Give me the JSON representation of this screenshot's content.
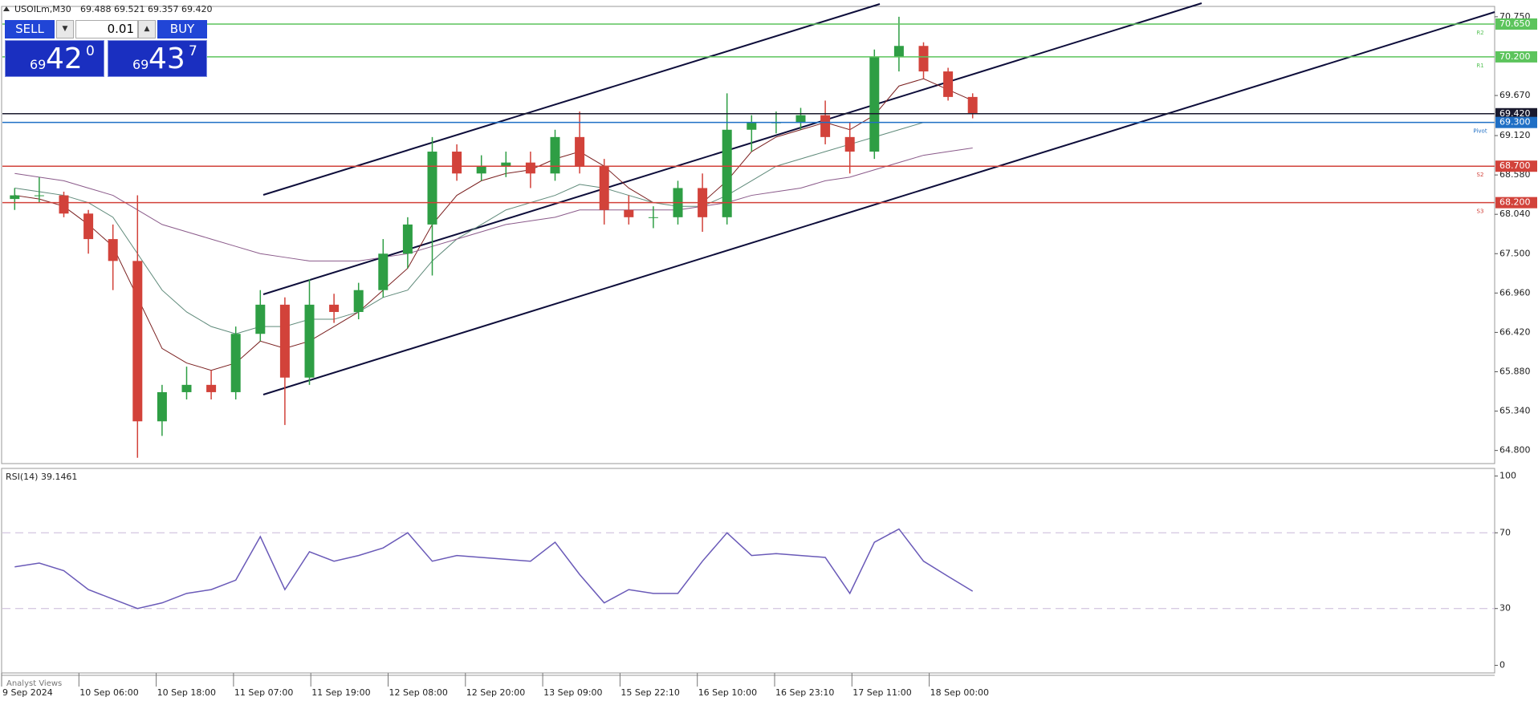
{
  "header": {
    "symbol": "USOILm,M30",
    "quote": "69.488 69.521 69.357 69.420"
  },
  "trade_panel": {
    "sell": "SELL",
    "buy": "BUY",
    "lot": "0.01",
    "bid": {
      "big": "69",
      "main": "42",
      "sup": "0"
    },
    "ask": {
      "big": "69",
      "main": "43",
      "sup": "7"
    }
  },
  "x_labels": [
    "9 Sep 2024",
    "10 Sep 06:00",
    "10 Sep 18:00",
    "11 Sep 07:00",
    "11 Sep 19:00",
    "12 Sep 08:00",
    "12 Sep 20:00",
    "13 Sep 09:00",
    "15 Sep 22:10",
    "16 Sep 10:00",
    "16 Sep 23:10",
    "17 Sep 11:00",
    "18 Sep 00:00"
  ],
  "footer": "Analyst Views",
  "chart_data": [
    {
      "type": "candlestick",
      "up_color": "#2e9e44",
      "down_color": "#d2423a",
      "open": [
        68.25,
        68.3,
        68.3,
        68.05,
        67.7,
        67.4,
        65.2,
        65.6,
        65.7,
        65.6,
        66.4,
        66.8,
        65.8,
        66.8,
        66.7,
        67.0,
        67.5,
        67.9,
        68.9,
        68.6,
        68.7,
        68.75,
        68.6,
        69.1,
        68.7,
        68.1,
        68.0,
        68.0,
        68.4,
        68.0,
        69.2,
        69.3,
        69.3,
        69.4,
        69.1,
        68.9,
        70.2,
        70.35,
        70.0,
        69.65
      ],
      "high": [
        68.4,
        68.55,
        68.35,
        68.1,
        67.9,
        68.3,
        65.7,
        65.95,
        65.9,
        66.5,
        67.0,
        66.9,
        67.15,
        66.95,
        67.1,
        67.7,
        68.0,
        69.1,
        69.0,
        68.85,
        68.9,
        68.9,
        69.2,
        69.45,
        68.8,
        68.3,
        68.15,
        68.5,
        68.6,
        69.7,
        69.4,
        69.45,
        69.5,
        69.6,
        69.3,
        70.3,
        70.75,
        70.4,
        70.05,
        69.7
      ],
      "low": [
        68.1,
        68.2,
        68.0,
        67.5,
        67.0,
        64.7,
        65.0,
        65.5,
        65.5,
        65.5,
        66.3,
        65.15,
        65.7,
        66.55,
        66.6,
        66.9,
        67.3,
        67.2,
        68.5,
        68.5,
        68.55,
        68.4,
        68.5,
        68.6,
        67.9,
        67.9,
        67.85,
        67.9,
        67.8,
        67.9,
        68.9,
        69.15,
        69.2,
        69.0,
        68.6,
        68.8,
        70.0,
        69.9,
        69.6,
        69.357
      ],
      "close": [
        68.3,
        68.3,
        68.05,
        67.7,
        67.4,
        65.2,
        65.6,
        65.7,
        65.6,
        66.4,
        66.8,
        65.8,
        66.8,
        66.7,
        67.0,
        67.5,
        67.9,
        68.9,
        68.6,
        68.7,
        68.75,
        68.6,
        69.1,
        68.7,
        68.1,
        68.0,
        68.0,
        68.4,
        68.0,
        69.2,
        69.3,
        69.3,
        69.4,
        69.1,
        68.9,
        70.2,
        70.35,
        70.0,
        69.65,
        69.42
      ],
      "ma": [
        {
          "color": "#7a1f1f",
          "values": [
            68.3,
            68.25,
            68.15,
            67.9,
            67.6,
            66.9,
            66.2,
            66.0,
            65.9,
            66.0,
            66.3,
            66.2,
            66.3,
            66.5,
            66.7,
            67.0,
            67.3,
            67.9,
            68.3,
            68.5,
            68.6,
            68.65,
            68.8,
            68.9,
            68.7,
            68.4,
            68.2,
            68.2,
            68.2,
            68.5,
            68.9,
            69.1,
            69.2,
            69.3,
            69.2,
            69.4,
            69.8,
            69.9,
            69.75,
            69.6
          ]
        },
        {
          "color": "#5f8a7a",
          "values": [
            68.4,
            68.35,
            68.3,
            68.2,
            68.0,
            67.5,
            67.0,
            66.7,
            66.5,
            66.4,
            66.5,
            66.5,
            66.6,
            66.6,
            66.7,
            66.9,
            67.0,
            67.4,
            67.7,
            67.9,
            68.1,
            68.2,
            68.3,
            68.45,
            68.4,
            68.3,
            68.2,
            68.15,
            68.15,
            68.3,
            68.5,
            68.7,
            68.8,
            68.9,
            69.0,
            69.1,
            69.2,
            69.3,
            69.3,
            69.3
          ]
        },
        {
          "color": "#8a5a8a",
          "values": [
            68.6,
            68.55,
            68.5,
            68.4,
            68.3,
            68.1,
            67.9,
            67.8,
            67.7,
            67.6,
            67.5,
            67.45,
            67.4,
            67.4,
            67.4,
            67.45,
            67.5,
            67.6,
            67.7,
            67.8,
            67.9,
            67.95,
            68.0,
            68.1,
            68.1,
            68.1,
            68.1,
            68.1,
            68.15,
            68.2,
            68.3,
            68.35,
            68.4,
            68.5,
            68.55,
            68.65,
            68.75,
            68.85,
            68.9,
            68.95
          ]
        }
      ],
      "ylim": [
        64.62,
        70.87
      ],
      "yticks": [
        {
          "value": 70.75,
          "label": "70.750"
        },
        {
          "value": 69.67,
          "label": "69.670"
        },
        {
          "value": 69.12,
          "label": "69.120"
        },
        {
          "value": 68.58,
          "label": "68.580"
        },
        {
          "value": 68.04,
          "label": "68.040"
        },
        {
          "value": 67.5,
          "label": "67.500"
        },
        {
          "value": 66.96,
          "label": "66.960"
        },
        {
          "value": 66.42,
          "label": "66.420"
        },
        {
          "value": 65.88,
          "label": "65.880"
        },
        {
          "value": 65.34,
          "label": "65.340"
        },
        {
          "value": 64.8,
          "label": "64.800"
        }
      ],
      "levels": [
        {
          "name": "R2",
          "value": 70.65,
          "label": "70.650",
          "color": "#5cc45c"
        },
        {
          "name": "R1",
          "value": 70.2,
          "label": "70.200",
          "color": "#5cc45c"
        },
        {
          "value": 69.42,
          "label": "69.420",
          "color": "#1a1a2e"
        },
        {
          "name": "Pivot",
          "value": 69.3,
          "label": "69.300",
          "color": "#1f6fc5"
        },
        {
          "name": "S2",
          "value": 68.7,
          "label": "68.700",
          "color": "#d2423a"
        },
        {
          "name": "S3",
          "value": 68.2,
          "label": "68.200",
          "color": "#d2423a"
        }
      ]
    },
    {
      "type": "line",
      "title": "RSI(14) 39.1461",
      "color": "#6a5ab8",
      "values": [
        52,
        54,
        50,
        40,
        35,
        30,
        33,
        38,
        40,
        45,
        68,
        40,
        60,
        55,
        58,
        62,
        70,
        55,
        58,
        57,
        56,
        55,
        65,
        48,
        33,
        40,
        38,
        38,
        55,
        70,
        58,
        59,
        58,
        57,
        38,
        65,
        72,
        55,
        47,
        39.1461
      ],
      "ylim": [
        -4,
        104
      ],
      "yticks": [
        0,
        30,
        70,
        100
      ],
      "levels": [
        30,
        70
      ]
    }
  ]
}
